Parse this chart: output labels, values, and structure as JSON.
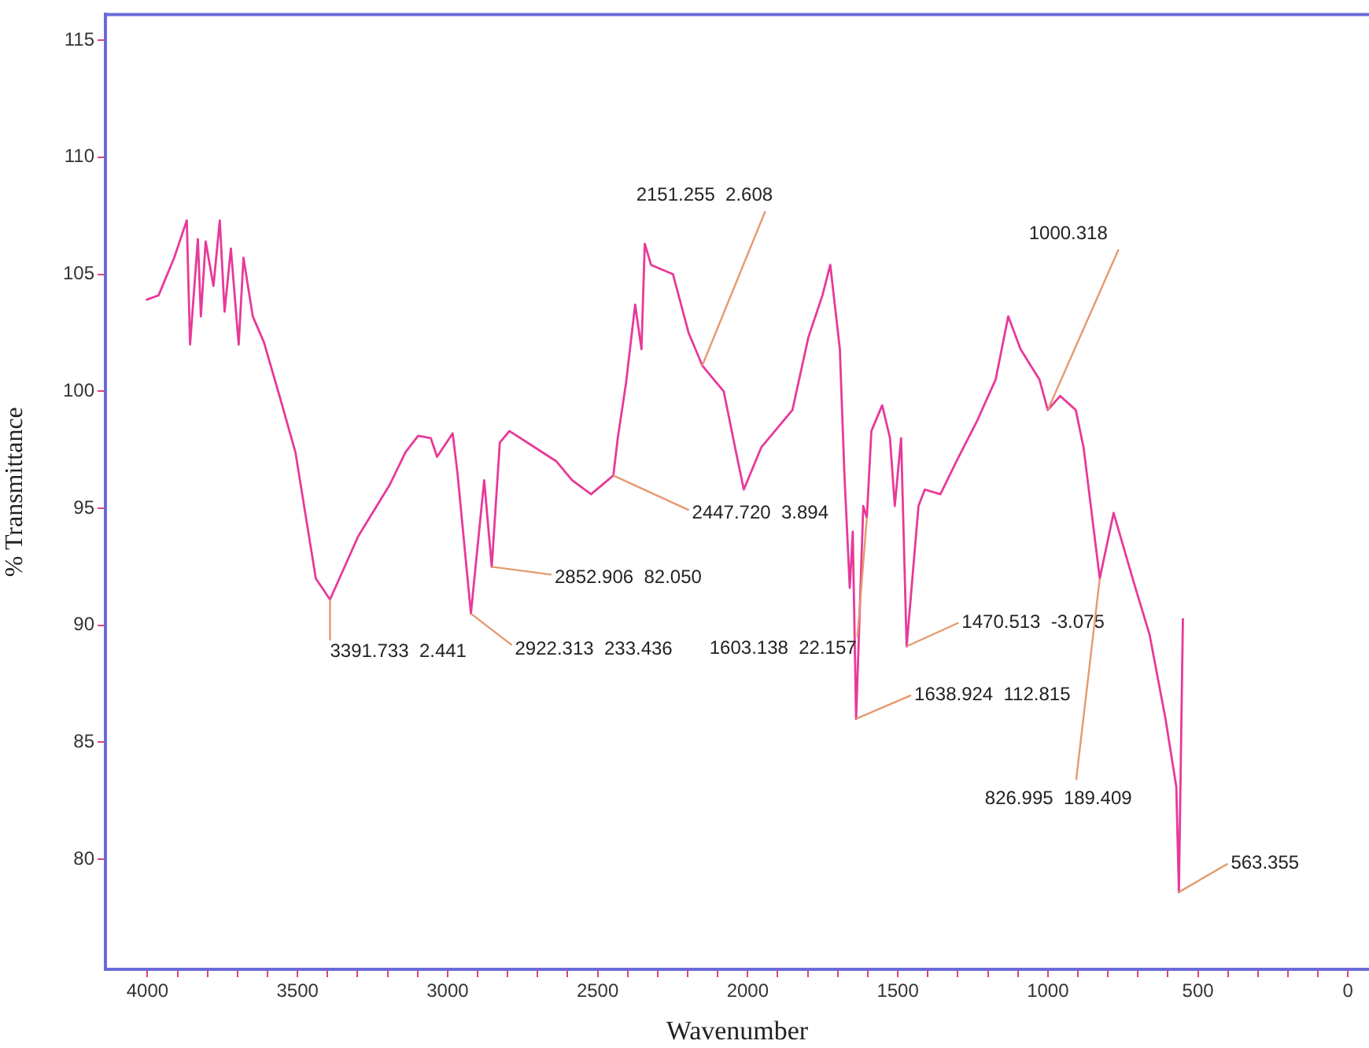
{
  "chart_data": {
    "type": "line",
    "xlabel": "Wavenumber",
    "ylabel": "% Transmittance",
    "xlim": [
      4140,
      -70
    ],
    "ylim": [
      75.3,
      116.1
    ],
    "xticks": [
      4000,
      {
        "value": 3900,
        "label": null
      },
      {
        "value": 3800,
        "label": null
      },
      {
        "value": 3700,
        "label": null
      },
      {
        "value": 3600,
        "label": null
      },
      3500,
      {
        "value": 3400,
        "label": null
      },
      {
        "value": 3300,
        "label": null
      },
      {
        "value": 3200,
        "label": null
      },
      {
        "value": 3100,
        "label": null
      },
      3000,
      {
        "value": 2900,
        "label": null
      },
      {
        "value": 2800,
        "label": null
      },
      {
        "value": 2700,
        "label": null
      },
      {
        "value": 2600,
        "label": null
      },
      2500,
      {
        "value": 2400,
        "label": null
      },
      {
        "value": 2300,
        "label": null
      },
      {
        "value": 2200,
        "label": null
      },
      {
        "value": 2100,
        "label": null
      },
      2000,
      {
        "value": 1900,
        "label": null
      },
      {
        "value": 1800,
        "label": null
      },
      {
        "value": 1700,
        "label": null
      },
      {
        "value": 1600,
        "label": null
      },
      1500,
      {
        "value": 1400,
        "label": null
      },
      {
        "value": 1300,
        "label": null
      },
      {
        "value": 1200,
        "label": null
      },
      {
        "value": 1100,
        "label": null
      },
      1000,
      {
        "value": 900,
        "label": null
      },
      {
        "value": 800,
        "label": null
      },
      {
        "value": 700,
        "label": null
      },
      {
        "value": 600,
        "label": null
      },
      500,
      {
        "value": 400,
        "label": null
      },
      {
        "value": 300,
        "label": null
      },
      {
        "value": 200,
        "label": null
      },
      {
        "value": 100,
        "label": null
      },
      0
    ],
    "yticks": [
      80,
      85,
      90,
      95,
      100,
      105,
      110,
      115
    ],
    "grid": false,
    "legend": false,
    "marker": "none",
    "line_style": "solid",
    "series": [
      {
        "color": "#e8399a",
        "x": [
          4005,
          3963,
          3911,
          3869,
          3858,
          3832,
          3822,
          3806,
          3780,
          3759,
          3743,
          3722,
          3696,
          3680,
          3649,
          3612,
          3560,
          3507,
          3439,
          3391.7,
          3298,
          3193,
          3140,
          3098,
          3056,
          3035,
          2983,
          2967,
          2922.3,
          2878,
          2852.9,
          2826,
          2794,
          2721,
          2637,
          2585,
          2522,
          2447.7,
          2433,
          2406,
          2375,
          2354,
          2343,
          2322,
          2249,
          2197,
          2151.3,
          2113,
          2080,
          2039,
          2013,
          1955,
          1851,
          1798,
          1751,
          1725,
          1693,
          1678,
          1660,
          1650,
          1638.9,
          1615,
          1603.1,
          1588,
          1552,
          1526,
          1510,
          1489,
          1470.5,
          1431,
          1410,
          1358,
          1305,
          1237,
          1174,
          1132,
          1091,
          1028,
          1000.3,
          959,
          907,
          881,
          827,
          781,
          713,
          661,
          608,
          572,
          563.4,
          550
        ],
        "values": [
          103.9,
          104.1,
          105.7,
          107.3,
          102.0,
          106.5,
          103.2,
          106.4,
          104.5,
          107.3,
          103.4,
          106.1,
          102.0,
          105.7,
          103.2,
          102.1,
          99.8,
          97.4,
          92.0,
          91.1,
          93.8,
          96.0,
          97.4,
          98.1,
          98.0,
          97.2,
          98.2,
          96.5,
          90.5,
          96.2,
          92.5,
          97.8,
          98.3,
          97.7,
          97.0,
          96.2,
          95.6,
          96.4,
          98.0,
          100.3,
          103.7,
          101.8,
          106.3,
          105.4,
          105.0,
          102.5,
          101.1,
          100.5,
          100.0,
          97.4,
          95.8,
          97.6,
          99.2,
          102.3,
          104.1,
          105.4,
          101.8,
          96.5,
          91.6,
          94.0,
          86.0,
          95.1,
          94.6,
          98.3,
          99.4,
          98.0,
          95.1,
          98.0,
          89.1,
          95.1,
          95.8,
          95.6,
          97.0,
          98.7,
          100.5,
          103.2,
          101.8,
          100.5,
          99.2,
          99.8,
          99.2,
          97.6,
          92.0,
          94.8,
          91.8,
          89.6,
          86.0,
          83.1,
          78.6,
          90.3
        ]
      }
    ],
    "annotations": [
      {
        "text": "3391.733  2.441",
        "x": 3391.7,
        "y": 91.1
      },
      {
        "text": "2922.313  233.436",
        "x": 2922.3,
        "y": 90.5
      },
      {
        "text": "2852.906  82.050",
        "x": 2852.9,
        "y": 92.5
      },
      {
        "text": "2447.720  3.894",
        "x": 2447.7,
        "y": 96.4
      },
      {
        "text": "2151.255  2.608",
        "x": 2151.3,
        "y": 101.1
      },
      {
        "text": "1603.138  22.157",
        "x": 1603.1,
        "y": 94.6
      },
      {
        "text": "1638.924  112.815",
        "x": 1638.9,
        "y": 86.0
      },
      {
        "text": "1470.513  -3.075",
        "x": 1470.5,
        "y": 89.1
      },
      {
        "text": "826.995  189.409",
        "x": 827,
        "y": 92.0
      },
      {
        "text": "1000.318",
        "x": 1000.3,
        "y": 99.2
      },
      {
        "text": "563.355",
        "x": 563.4,
        "y": 78.6
      }
    ]
  }
}
